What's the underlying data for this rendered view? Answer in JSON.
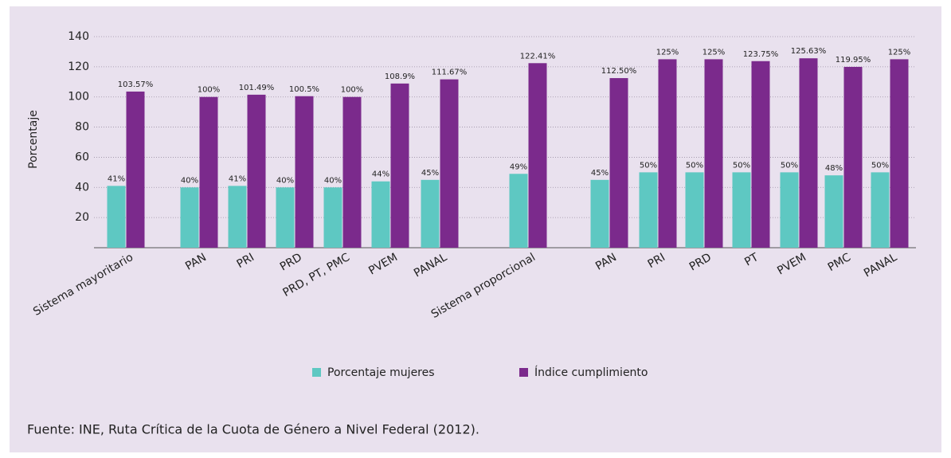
{
  "chart_data": {
    "type": "bar",
    "y_label": "Porcentaje",
    "categories": [
      "Sistema mayoritario",
      "PAN",
      "PRI",
      "PRD",
      "PRD, PT, PMC",
      "PVEM",
      "PANAL",
      "Sistema proporcional",
      "PAN",
      "PRI",
      "PRD",
      "PT",
      "PVEM",
      "PMC",
      "PANAL"
    ],
    "series": [
      {
        "name": "Porcentaje mujeres",
        "color": "#5ec8c2",
        "values": [
          41,
          40,
          41,
          40,
          40,
          44,
          45,
          49,
          45,
          50,
          50,
          50,
          50,
          48,
          50
        ],
        "value_labels": [
          "41%",
          "40%",
          "41%",
          "40%",
          "40%",
          "44%",
          "45%",
          "49%",
          "45%",
          "50%",
          "50%",
          "50%",
          "50%",
          "48%",
          "50%"
        ]
      },
      {
        "name": "Índice cumplimiento",
        "color": "#7b2a8c",
        "values": [
          103.57,
          100,
          101.49,
          100.5,
          100,
          108.9,
          111.67,
          122.41,
          112.5,
          125,
          125,
          123.75,
          125.63,
          119.95,
          125
        ],
        "value_labels": [
          "103.57%",
          "100%",
          "101.49%",
          "100.5%",
          "100%",
          "108.9%",
          "111.67%",
          "122.41%",
          "112.50%",
          "125%",
          "125%",
          "123.75%",
          "125.63%",
          "119.95%",
          "125%"
        ]
      }
    ],
    "ylim": [
      0,
      140
    ],
    "yticks": [
      20,
      40,
      60,
      80,
      100,
      120,
      140
    ],
    "grid": true,
    "legend": "bottom",
    "source": "Fuente: INE, Ruta Crítica de la Cuota de Género a Nivel Federal (2012)."
  }
}
